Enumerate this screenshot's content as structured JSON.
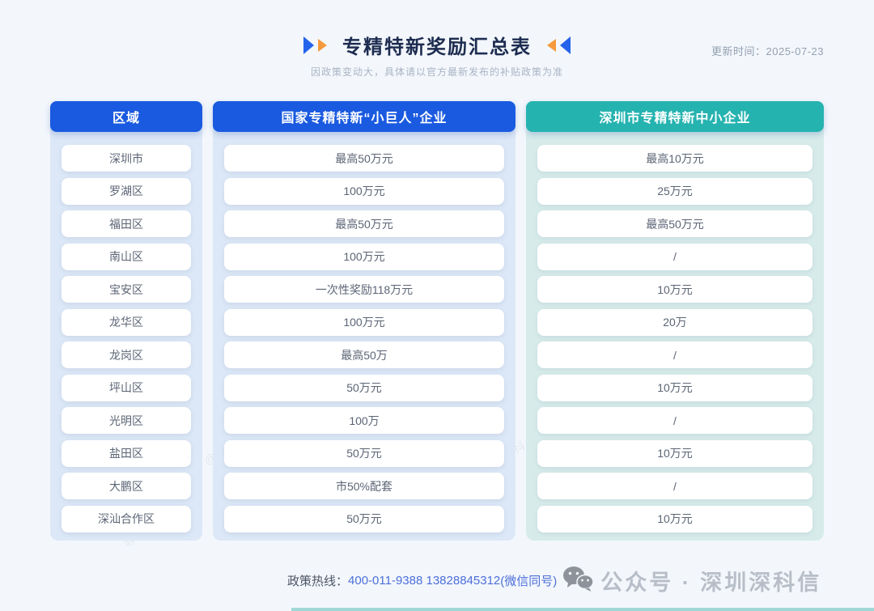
{
  "header": {
    "title": "专精特新奖励汇总表",
    "subtitle": "因政策变动大，具体请以官方最新发布的补贴政策为准",
    "update_time": "更新时间：2025-07-23"
  },
  "accent_colors": {
    "blue_header": "#1a5ae0",
    "teal_header": "#25b3b0",
    "arrow_blue": "#2563eb",
    "arrow_orange": "#f59a3c"
  },
  "columns": [
    {
      "key": "region",
      "header": "区域",
      "theme": "blue",
      "header_bg": "#1a5ae0",
      "rows": [
        "深圳市",
        "罗湖区",
        "福田区",
        "南山区",
        "宝安区",
        "龙华区",
        "龙岗区",
        "坪山区",
        "光明区",
        "盐田区",
        "大鹏区",
        "深汕合作区"
      ]
    },
    {
      "key": "national-little-giant",
      "header": "国家专精特新“小巨人”企业",
      "theme": "blue",
      "header_bg": "#1a5ae0",
      "rows": [
        "最高50万元",
        "100万元",
        "最高50万元",
        "100万元",
        "一次性奖励118万元",
        "100万元",
        "最高50万",
        "50万元",
        "100万",
        "50万元",
        "市50%配套",
        "50万元"
      ]
    },
    {
      "key": "shenzhen-sme",
      "header": "深圳市专精特新中小企业",
      "theme": "teal",
      "header_bg": "#25b3b0",
      "rows": [
        "最高10万元",
        "25万元",
        "最高50万元",
        "/",
        "10万元",
        "20万",
        "/",
        "10万元",
        "/",
        "10万元",
        "/",
        "10万元"
      ]
    }
  ],
  "footer": {
    "hotline_label": "政策热线：",
    "hotline_numbers": "400-011-9388 13828845312",
    "hotline_suffix": "(微信同号)",
    "wechat_label": "公众号 · 深圳深科信"
  },
  "watermark": "@深科信"
}
